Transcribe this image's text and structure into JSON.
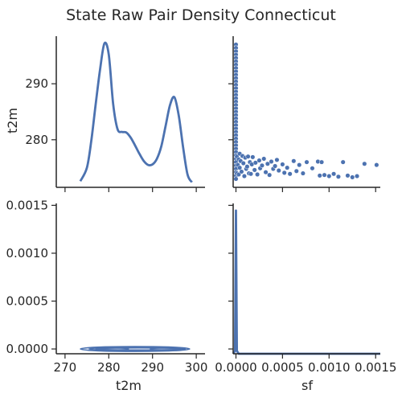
{
  "chart_data": {
    "type": "pairplot",
    "title": "State Raw Pair Density Connecticut",
    "variables": [
      "t2m",
      "sf"
    ],
    "color": "#4c72b0",
    "panels": [
      {
        "id": "t2m-t2m",
        "type": "kde-line",
        "xlim": [
          268,
          302
        ],
        "x": [
          273.5,
          275,
          276,
          277,
          278,
          279,
          280,
          281,
          282,
          283,
          284,
          285,
          286,
          287,
          288,
          289,
          290,
          291,
          292,
          293,
          294,
          295,
          296,
          297,
          298,
          299
        ],
        "y": [
          272.6,
          275.0,
          279.8,
          286.3,
          292.5,
          297.2,
          295.2,
          286.4,
          281.9,
          281.4,
          281.3,
          280.4,
          279.0,
          277.5,
          276.2,
          275.5,
          275.6,
          276.6,
          278.8,
          282.5,
          286.2,
          287.6,
          284.3,
          278.6,
          273.8,
          272.4
        ]
      },
      {
        "id": "sf-t2m",
        "type": "scatter",
        "xlim": [
          -3e-05,
          0.00155
        ],
        "ylim": [
          271.5,
          298.5
        ],
        "points": [
          [
            0.0,
            297.0
          ],
          [
            0.0,
            296.4
          ],
          [
            0.0,
            295.8
          ],
          [
            0.0,
            295.2
          ],
          [
            0.0,
            294.6
          ],
          [
            0.0,
            294.0
          ],
          [
            0.0,
            293.4
          ],
          [
            0.0,
            292.8
          ],
          [
            0.0,
            292.2
          ],
          [
            0.0,
            291.6
          ],
          [
            0.0,
            291.0
          ],
          [
            0.0,
            290.4
          ],
          [
            0.0,
            289.8
          ],
          [
            0.0,
            289.2
          ],
          [
            0.0,
            288.6
          ],
          [
            0.0,
            288.0
          ],
          [
            0.0,
            287.4
          ],
          [
            0.0,
            286.8
          ],
          [
            0.0,
            286.2
          ],
          [
            0.0,
            285.6
          ],
          [
            0.0,
            285.0
          ],
          [
            0.0,
            284.4
          ],
          [
            0.0,
            283.8
          ],
          [
            0.0,
            283.2
          ],
          [
            0.0,
            282.6
          ],
          [
            0.0,
            282.0
          ],
          [
            0.0,
            281.4
          ],
          [
            0.0,
            280.8
          ],
          [
            0.0,
            280.2
          ],
          [
            0.0,
            279.6
          ],
          [
            0.0,
            279.0
          ],
          [
            0.0,
            278.4
          ],
          [
            0.0,
            277.8
          ],
          [
            0.0,
            277.2
          ],
          [
            0.0,
            276.6
          ],
          [
            0.0,
            276.0
          ],
          [
            0.0,
            275.4
          ],
          [
            0.0,
            274.8
          ],
          [
            0.0,
            274.2
          ],
          [
            0.0,
            273.6
          ],
          [
            0.0,
            273.0
          ],
          [
            1e-05,
            277.0
          ],
          [
            1e-05,
            274.0
          ],
          [
            2e-05,
            275.5
          ],
          [
            3e-05,
            276.5
          ],
          [
            3e-05,
            273.8
          ],
          [
            4e-05,
            277.5
          ],
          [
            4e-05,
            275.0
          ],
          [
            5e-05,
            276.2
          ],
          [
            6e-05,
            274.3
          ],
          [
            7e-05,
            277.1
          ],
          [
            8e-05,
            275.8
          ],
          [
            9e-05,
            273.5
          ],
          [
            0.0001,
            276.8
          ],
          [
            0.00011,
            274.8
          ],
          [
            0.00012,
            275.2
          ],
          [
            0.00013,
            277.0
          ],
          [
            0.00014,
            274.0
          ],
          [
            0.00015,
            276.0
          ],
          [
            0.00016,
            273.9
          ],
          [
            0.00017,
            275.6
          ],
          [
            0.00018,
            276.9
          ],
          [
            0.0002,
            274.6
          ],
          [
            0.00021,
            275.9
          ],
          [
            0.00023,
            273.8
          ],
          [
            0.00025,
            276.3
          ],
          [
            0.00026,
            274.9
          ],
          [
            0.00028,
            275.4
          ],
          [
            0.0003,
            276.6
          ],
          [
            0.00032,
            274.2
          ],
          [
            0.00034,
            275.7
          ],
          [
            0.00036,
            273.7
          ],
          [
            0.00038,
            276.1
          ],
          [
            0.0004,
            274.8
          ],
          [
            0.00042,
            275.3
          ],
          [
            0.00044,
            276.4
          ],
          [
            0.00046,
            274.5
          ],
          [
            0.0005,
            275.6
          ],
          [
            0.00052,
            274.1
          ],
          [
            0.00055,
            275.0
          ],
          [
            0.00058,
            273.9
          ],
          [
            0.00062,
            276.2
          ],
          [
            0.00065,
            274.4
          ],
          [
            0.00068,
            275.5
          ],
          [
            0.00072,
            274.0
          ],
          [
            0.00076,
            276.0
          ],
          [
            0.00082,
            274.9
          ],
          [
            0.00088,
            276.1
          ],
          [
            0.0009,
            273.6
          ],
          [
            0.00092,
            276.0
          ],
          [
            0.00095,
            273.7
          ],
          [
            0.001,
            273.5
          ],
          [
            0.00105,
            273.9
          ],
          [
            0.0011,
            273.4
          ],
          [
            0.00115,
            276.0
          ],
          [
            0.0012,
            273.6
          ],
          [
            0.00125,
            273.3
          ],
          [
            0.0013,
            273.5
          ],
          [
            0.00138,
            275.7
          ],
          [
            0.00151,
            275.5
          ]
        ]
      },
      {
        "id": "t2m-sf",
        "type": "kde-contour",
        "xlim": [
          268,
          302
        ],
        "ylim": [
          -5e-05,
          0.00152
        ],
        "ylabel_ticks": [
          "0.0000",
          "0.0005",
          "0.0010",
          "0.0015"
        ],
        "contours": [
          {
            "xrange": [
              273.5,
              298.5
            ],
            "y": 0.0,
            "height": 2.5e-05
          },
          {
            "xrange": [
              275.5,
              297.5
            ],
            "y": 0.0,
            "height": 1.7e-05
          },
          {
            "xrange": [
              277.0,
              296.5
            ],
            "y": 0.0,
            "height": 1.1e-05
          },
          {
            "xrange": [
              278.5,
              284.5
            ],
            "y": 0.0,
            "height": 6e-06
          },
          {
            "xrange": [
              289.5,
              296.0
            ],
            "y": 0.0,
            "height": 6e-06
          }
        ]
      },
      {
        "id": "sf-sf",
        "type": "kde-line",
        "xlim": [
          -3e-05,
          0.00155
        ],
        "x": [
          -3e-05,
          -1e-05,
          -5e-06,
          0.0,
          5e-06,
          1e-05,
          3e-05,
          0.00155
        ],
        "y": [
          0.0,
          0.02,
          0.5,
          1.0,
          0.5,
          0.02,
          0.0,
          0.0
        ]
      }
    ],
    "axes": {
      "t2m_ticks": [
        270,
        280,
        290,
        300
      ],
      "t2m_y_ticks": [
        280,
        290
      ],
      "sf_x_ticks": [
        "0.0000",
        "0.0005",
        "0.0010",
        "0.0015"
      ],
      "sf_x_tick_values": [
        0.0,
        0.0005,
        0.001,
        0.0015
      ],
      "xlabels": [
        "t2m",
        "sf"
      ],
      "ylabels": [
        "t2m",
        ""
      ]
    },
    "grid": false,
    "legend": "none"
  }
}
